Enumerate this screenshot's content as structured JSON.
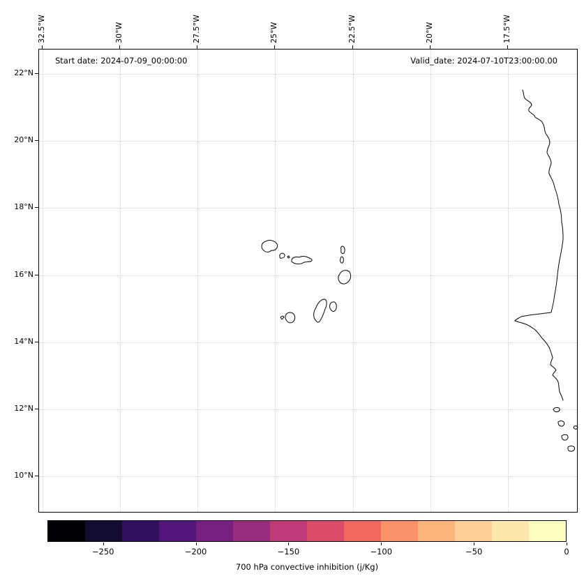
{
  "figure": {
    "annotations": {
      "start_date": "Start date: 2024-07-09_00:00:00",
      "valid_date": "Valid_date: 2024-07-10T23:00:00.00"
    }
  },
  "axes": {
    "x_tick_labels": [
      "32.5°W",
      "30°W",
      "27.5°W",
      "25°W",
      "22.5°W",
      "20°W",
      "17.5°W"
    ],
    "y_tick_labels": [
      "22°N",
      "20°N",
      "18°N",
      "16°N",
      "14°N",
      "12°N",
      "10°N"
    ]
  },
  "colorbar": {
    "label": "700 hPa convective inhibition (j/Kg)",
    "tick_labels": [
      "−250",
      "−200",
      "−150",
      "−100",
      "−50",
      "0"
    ],
    "tick_values": [
      -250,
      -200,
      -150,
      -100,
      -50,
      0
    ],
    "range": [
      -280,
      0
    ],
    "colors": [
      "#000004",
      "#120c30",
      "#30105d",
      "#53157a",
      "#762081",
      "#982d7f",
      "#bc3a76",
      "#da4c69",
      "#f2685f",
      "#fc9267",
      "#feb47d",
      "#fed095",
      "#fde7ac",
      "#fcfdbf"
    ]
  },
  "map": {
    "features": [
      "Cape Verde islands coastline",
      "West African coastline"
    ],
    "coastline_color": "#000000",
    "grid_color": "#dcc6c6",
    "background_color": "#ffffff"
  },
  "chart_data": {
    "type": "heatmap",
    "title": "",
    "xlabel": "",
    "ylabel": "",
    "x_ticks": [
      "32.5°W",
      "30°W",
      "27.5°W",
      "25°W",
      "22.5°W",
      "20°W",
      "17.5°W"
    ],
    "y_ticks": [
      "22°N",
      "20°N",
      "18°N",
      "16°N",
      "14°N",
      "12°N",
      "10°N"
    ],
    "grid": true,
    "legend_position": "bottom-colorbar",
    "colorbar_label": "700 hPa convective inhibition (j/Kg)",
    "colorbar_tick_values": [
      -250,
      -200,
      -150,
      -100,
      -50,
      0
    ],
    "colorbar_range": [
      -280,
      0
    ],
    "values": []
  }
}
